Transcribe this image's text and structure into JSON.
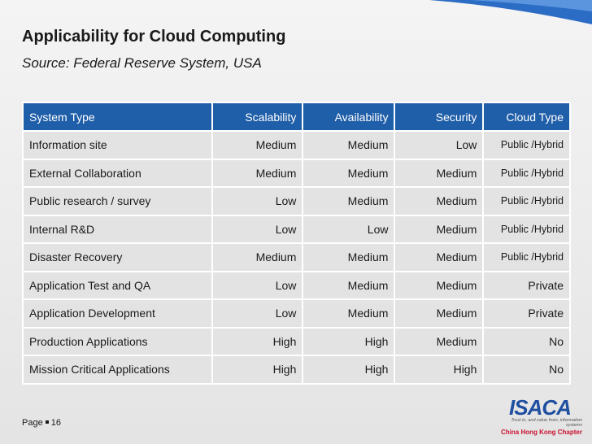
{
  "header": {
    "title": "Applicability for Cloud Computing",
    "subtitle": "Source: Federal Reserve System, USA"
  },
  "table": {
    "columns": [
      "System Type",
      "Scalability",
      "Availability",
      "Security",
      "Cloud Type"
    ],
    "rows": [
      [
        "Information site",
        "Medium",
        "Medium",
        "Low",
        "Public /Hybrid"
      ],
      [
        "External Collaboration",
        "Medium",
        "Medium",
        "Medium",
        "Public /Hybrid"
      ],
      [
        "Public research / survey",
        "Low",
        "Medium",
        "Medium",
        "Public /Hybrid"
      ],
      [
        "Internal R&D",
        "Low",
        "Low",
        "Medium",
        "Public /Hybrid"
      ],
      [
        "Disaster Recovery",
        "Medium",
        "Medium",
        "Medium",
        "Public /Hybrid"
      ],
      [
        "Application Test and QA",
        "Low",
        "Medium",
        "Medium",
        "Private"
      ],
      [
        "Application Development",
        "Low",
        "Medium",
        "Medium",
        "Private"
      ],
      [
        "Production Applications",
        "High",
        "High",
        "Medium",
        "No"
      ],
      [
        "Mission Critical Applications",
        "High",
        "High",
        "High",
        "No"
      ]
    ]
  },
  "footer": {
    "page_label": "Page",
    "page_number": "16"
  },
  "logo": {
    "name": "ISACA",
    "tagline": "Trust in, and value from, information systems",
    "chapter": "China Hong Kong Chapter"
  }
}
